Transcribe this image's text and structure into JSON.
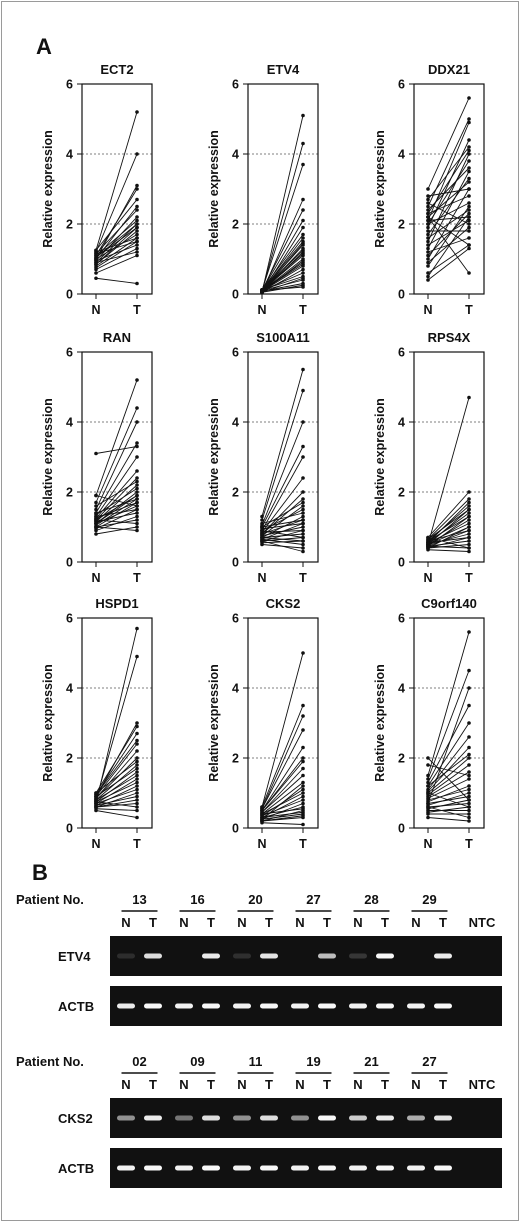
{
  "panel_a": {
    "label": "A"
  },
  "panel_b": {
    "label": "B",
    "patient_label": "Patient No.",
    "ntc_label": "NTC",
    "lane_labels": [
      "N",
      "T"
    ],
    "groups": [
      {
        "patients": [
          "13",
          "16",
          "20",
          "27",
          "28",
          "29"
        ],
        "gels": [
          {
            "gene": "ETV4",
            "N": [
              0.02,
              0.0,
              0.03,
              0.0,
              0.08,
              0.0
            ],
            "T": [
              0.75,
              0.85,
              0.8,
              0.65,
              0.95,
              0.85
            ],
            "NTC": 0.0
          },
          {
            "gene": "ACTB",
            "N": [
              0.85,
              0.9,
              0.9,
              0.9,
              0.9,
              0.9
            ],
            "T": [
              0.95,
              0.95,
              0.95,
              0.95,
              0.95,
              0.95
            ],
            "NTC": 0.0
          }
        ]
      },
      {
        "patients": [
          "02",
          "09",
          "11",
          "19",
          "21",
          "27"
        ],
        "gels": [
          {
            "gene": "CKS2",
            "N": [
              0.5,
              0.4,
              0.5,
              0.5,
              0.7,
              0.6
            ],
            "T": [
              0.85,
              0.75,
              0.75,
              0.95,
              0.85,
              0.8
            ],
            "NTC": 0.0
          },
          {
            "gene": "ACTB",
            "N": [
              0.9,
              0.9,
              0.9,
              0.9,
              0.9,
              0.9
            ],
            "T": [
              0.95,
              0.95,
              0.95,
              0.95,
              0.95,
              0.95
            ],
            "NTC": 0.0
          }
        ]
      }
    ]
  },
  "chart_data": [
    {
      "type": "line",
      "title": "ECT2",
      "ylabel": "Relative expression",
      "x": [
        "N",
        "T"
      ],
      "ylim": [
        0,
        6
      ],
      "yticks": [
        0,
        2,
        4,
        6
      ],
      "grid": "y-dotted",
      "pairs": [
        [
          0.45,
          0.3
        ],
        [
          0.6,
          1.1
        ],
        [
          0.7,
          1.3
        ],
        [
          0.75,
          1.5
        ],
        [
          0.8,
          1.6
        ],
        [
          0.85,
          1.8
        ],
        [
          0.9,
          2.0
        ],
        [
          0.9,
          1.2
        ],
        [
          0.95,
          2.2
        ],
        [
          1.0,
          1.7
        ],
        [
          1.0,
          2.5
        ],
        [
          1.05,
          1.9
        ],
        [
          1.1,
          2.1
        ],
        [
          1.1,
          3.0
        ],
        [
          1.15,
          2.4
        ],
        [
          1.2,
          4.0
        ],
        [
          1.2,
          1.6
        ],
        [
          1.25,
          2.7
        ],
        [
          1.25,
          5.2
        ],
        [
          0.95,
          1.4
        ],
        [
          1.05,
          2.0
        ],
        [
          0.85,
          1.9
        ],
        [
          1.0,
          3.1
        ],
        [
          1.15,
          1.5
        ]
      ]
    },
    {
      "type": "line",
      "title": "ETV4",
      "ylabel": "Relative expression",
      "x": [
        "N",
        "T"
      ],
      "ylim": [
        0,
        6
      ],
      "yticks": [
        0,
        2,
        4,
        6
      ],
      "grid": "y-dotted",
      "pairs": [
        [
          0.05,
          5.1
        ],
        [
          0.08,
          4.3
        ],
        [
          0.1,
          3.7
        ],
        [
          0.05,
          2.7
        ],
        [
          0.1,
          2.4
        ],
        [
          0.1,
          2.1
        ],
        [
          0.05,
          1.9
        ],
        [
          0.12,
          1.7
        ],
        [
          0.08,
          1.6
        ],
        [
          0.1,
          1.5
        ],
        [
          0.05,
          1.45
        ],
        [
          0.1,
          1.4
        ],
        [
          0.08,
          1.3
        ],
        [
          0.1,
          1.25
        ],
        [
          0.05,
          1.2
        ],
        [
          0.12,
          1.15
        ],
        [
          0.1,
          1.1
        ],
        [
          0.08,
          1.0
        ],
        [
          0.05,
          0.95
        ],
        [
          0.1,
          0.9
        ],
        [
          0.1,
          0.85
        ],
        [
          0.08,
          0.8
        ],
        [
          0.05,
          0.7
        ],
        [
          0.1,
          0.6
        ],
        [
          0.12,
          0.5
        ],
        [
          0.05,
          0.45
        ],
        [
          0.1,
          0.4
        ],
        [
          0.08,
          0.3
        ],
        [
          0.05,
          0.25
        ],
        [
          0.1,
          0.2
        ]
      ]
    },
    {
      "type": "line",
      "title": "DDX21",
      "ylabel": "Relative expression",
      "x": [
        "N",
        "T"
      ],
      "ylim": [
        0,
        6
      ],
      "yticks": [
        0,
        2,
        4,
        6
      ],
      "grid": "y-dotted",
      "pairs": [
        [
          0.4,
          1.3
        ],
        [
          0.5,
          2.2
        ],
        [
          0.6,
          1.4
        ],
        [
          0.8,
          2.5
        ],
        [
          0.9,
          1.9
        ],
        [
          1.0,
          3.0
        ],
        [
          1.1,
          2.3
        ],
        [
          1.2,
          1.6
        ],
        [
          1.3,
          3.5
        ],
        [
          1.4,
          2.1
        ],
        [
          1.5,
          4.0
        ],
        [
          1.6,
          2.4
        ],
        [
          1.7,
          3.3
        ],
        [
          1.8,
          1.8
        ],
        [
          1.9,
          4.4
        ],
        [
          2.0,
          2.6
        ],
        [
          2.0,
          3.8
        ],
        [
          2.1,
          2.2
        ],
        [
          2.1,
          4.9
        ],
        [
          2.2,
          3.2
        ],
        [
          2.2,
          0.6
        ],
        [
          2.3,
          4.1
        ],
        [
          2.3,
          2.8
        ],
        [
          2.4,
          3.6
        ],
        [
          2.5,
          5.0
        ],
        [
          2.6,
          2.0
        ],
        [
          2.7,
          4.2
        ],
        [
          2.8,
          3.0
        ],
        [
          3.0,
          5.6
        ],
        [
          2.2,
          1.4
        ]
      ]
    },
    {
      "type": "line",
      "title": "RAN",
      "ylabel": "Relative expression",
      "x": [
        "N",
        "T"
      ],
      "ylim": [
        0,
        6
      ],
      "yticks": [
        0,
        2,
        4,
        6
      ],
      "grid": "y-dotted",
      "pairs": [
        [
          0.8,
          1.0
        ],
        [
          0.9,
          1.3
        ],
        [
          0.95,
          1.5
        ],
        [
          1.0,
          1.7
        ],
        [
          1.0,
          1.2
        ],
        [
          1.05,
          1.8
        ],
        [
          1.1,
          1.6
        ],
        [
          1.1,
          2.0
        ],
        [
          1.15,
          1.4
        ],
        [
          1.15,
          2.2
        ],
        [
          1.2,
          1.9
        ],
        [
          1.2,
          2.4
        ],
        [
          1.25,
          1.7
        ],
        [
          1.25,
          2.6
        ],
        [
          1.3,
          1.5
        ],
        [
          1.3,
          3.0
        ],
        [
          1.35,
          2.1
        ],
        [
          1.4,
          3.4
        ],
        [
          1.4,
          1.8
        ],
        [
          1.5,
          4.0
        ],
        [
          1.6,
          2.3
        ],
        [
          1.7,
          4.4
        ],
        [
          1.9,
          5.2
        ],
        [
          1.9,
          1.6
        ],
        [
          3.1,
          3.3
        ],
        [
          1.0,
          0.9
        ],
        [
          1.2,
          1.1
        ],
        [
          1.1,
          1.9
        ]
      ]
    },
    {
      "type": "line",
      "title": "S100A11",
      "ylabel": "Relative expression",
      "x": [
        "N",
        "T"
      ],
      "ylim": [
        0,
        6
      ],
      "yticks": [
        0,
        2,
        4,
        6
      ],
      "grid": "y-dotted",
      "pairs": [
        [
          0.5,
          0.4
        ],
        [
          0.55,
          0.6
        ],
        [
          0.6,
          0.7
        ],
        [
          0.6,
          0.9
        ],
        [
          0.65,
          0.5
        ],
        [
          0.65,
          1.1
        ],
        [
          0.7,
          0.8
        ],
        [
          0.7,
          1.3
        ],
        [
          0.75,
          1.0
        ],
        [
          0.75,
          1.6
        ],
        [
          0.8,
          1.2
        ],
        [
          0.8,
          2.0
        ],
        [
          0.85,
          0.9
        ],
        [
          0.85,
          2.4
        ],
        [
          0.9,
          1.5
        ],
        [
          0.9,
          3.0
        ],
        [
          0.95,
          1.1
        ],
        [
          1.0,
          3.3
        ],
        [
          1.0,
          1.7
        ],
        [
          1.05,
          4.0
        ],
        [
          1.1,
          1.4
        ],
        [
          1.2,
          4.9
        ],
        [
          1.3,
          5.5
        ],
        [
          0.6,
          0.3
        ],
        [
          0.7,
          0.6
        ],
        [
          0.8,
          1.8
        ],
        [
          0.9,
          0.7
        ],
        [
          1.0,
          1.2
        ]
      ]
    },
    {
      "type": "line",
      "title": "RPS4X",
      "ylabel": "Relative expression",
      "x": [
        "N",
        "T"
      ],
      "ylim": [
        0,
        6
      ],
      "yticks": [
        0,
        2,
        4,
        6
      ],
      "grid": "y-dotted",
      "pairs": [
        [
          0.35,
          0.3
        ],
        [
          0.4,
          0.5
        ],
        [
          0.4,
          0.7
        ],
        [
          0.45,
          0.6
        ],
        [
          0.45,
          0.9
        ],
        [
          0.5,
          1.0
        ],
        [
          0.5,
          0.8
        ],
        [
          0.5,
          1.2
        ],
        [
          0.55,
          1.1
        ],
        [
          0.55,
          1.4
        ],
        [
          0.6,
          1.3
        ],
        [
          0.6,
          1.6
        ],
        [
          0.65,
          1.5
        ],
        [
          0.65,
          1.8
        ],
        [
          0.7,
          2.0
        ],
        [
          0.7,
          0.4
        ],
        [
          0.5,
          4.7
        ],
        [
          0.4,
          1.0
        ],
        [
          0.45,
          1.3
        ],
        [
          0.55,
          0.7
        ],
        [
          0.6,
          0.9
        ],
        [
          0.5,
          1.5
        ],
        [
          0.45,
          0.4
        ],
        [
          0.55,
          1.7
        ]
      ]
    },
    {
      "type": "line",
      "title": "HSPD1",
      "ylabel": "Relative expression",
      "x": [
        "N",
        "T"
      ],
      "ylim": [
        0,
        6
      ],
      "yticks": [
        0,
        2,
        4,
        6
      ],
      "grid": "y-dotted",
      "pairs": [
        [
          0.5,
          0.3
        ],
        [
          0.55,
          0.5
        ],
        [
          0.6,
          0.7
        ],
        [
          0.6,
          1.0
        ],
        [
          0.65,
          0.9
        ],
        [
          0.65,
          1.2
        ],
        [
          0.7,
          1.4
        ],
        [
          0.7,
          1.1
        ],
        [
          0.75,
          1.6
        ],
        [
          0.75,
          1.3
        ],
        [
          0.8,
          1.8
        ],
        [
          0.8,
          1.5
        ],
        [
          0.85,
          2.0
        ],
        [
          0.85,
          2.2
        ],
        [
          0.9,
          2.4
        ],
        [
          0.9,
          1.7
        ],
        [
          0.95,
          2.7
        ],
        [
          0.95,
          2.5
        ],
        [
          1.0,
          2.9
        ],
        [
          1.0,
          1.9
        ],
        [
          0.8,
          4.9
        ],
        [
          0.7,
          5.7
        ],
        [
          0.9,
          3.0
        ],
        [
          0.6,
          0.8
        ],
        [
          0.75,
          0.6
        ]
      ]
    },
    {
      "type": "line",
      "title": "CKS2",
      "ylabel": "Relative expression",
      "x": [
        "N",
        "T"
      ],
      "ylim": [
        0,
        6
      ],
      "yticks": [
        0,
        2,
        4,
        6
      ],
      "grid": "y-dotted",
      "pairs": [
        [
          0.15,
          0.1
        ],
        [
          0.2,
          0.3
        ],
        [
          0.2,
          0.5
        ],
        [
          0.25,
          0.4
        ],
        [
          0.25,
          0.7
        ],
        [
          0.3,
          0.6
        ],
        [
          0.3,
          0.9
        ],
        [
          0.35,
          0.8
        ],
        [
          0.35,
          1.1
        ],
        [
          0.4,
          1.0
        ],
        [
          0.4,
          1.3
        ],
        [
          0.45,
          1.5
        ],
        [
          0.45,
          1.7
        ],
        [
          0.5,
          2.0
        ],
        [
          0.5,
          2.3
        ],
        [
          0.55,
          2.8
        ],
        [
          0.55,
          3.2
        ],
        [
          0.6,
          3.5
        ],
        [
          0.6,
          5.0
        ],
        [
          0.3,
          0.45
        ],
        [
          0.2,
          0.35
        ],
        [
          0.4,
          0.55
        ],
        [
          0.25,
          1.2
        ],
        [
          0.5,
          1.9
        ]
      ]
    },
    {
      "type": "line",
      "title": "C9orf140",
      "ylabel": "Relative expression",
      "x": [
        "N",
        "T"
      ],
      "ylim": [
        0,
        6
      ],
      "yticks": [
        0,
        2,
        4,
        6
      ],
      "grid": "y-dotted",
      "pairs": [
        [
          0.3,
          0.2
        ],
        [
          0.4,
          0.4
        ],
        [
          0.45,
          0.6
        ],
        [
          0.5,
          0.5
        ],
        [
          0.55,
          0.8
        ],
        [
          0.6,
          0.7
        ],
        [
          0.65,
          1.0
        ],
        [
          0.7,
          0.9
        ],
        [
          0.75,
          1.2
        ],
        [
          0.8,
          1.1
        ],
        [
          0.85,
          1.4
        ],
        [
          0.9,
          1.6
        ],
        [
          0.95,
          1.8
        ],
        [
          1.0,
          2.0
        ],
        [
          1.05,
          2.3
        ],
        [
          1.1,
          2.6
        ],
        [
          1.2,
          3.0
        ],
        [
          1.3,
          3.5
        ],
        [
          1.4,
          4.5
        ],
        [
          1.5,
          5.6
        ],
        [
          2.0,
          0.8
        ],
        [
          1.8,
          1.5
        ],
        [
          1.2,
          2.1
        ],
        [
          1.0,
          0.6
        ],
        [
          0.7,
          4.0
        ],
        [
          0.6,
          0.3
        ]
      ]
    }
  ]
}
